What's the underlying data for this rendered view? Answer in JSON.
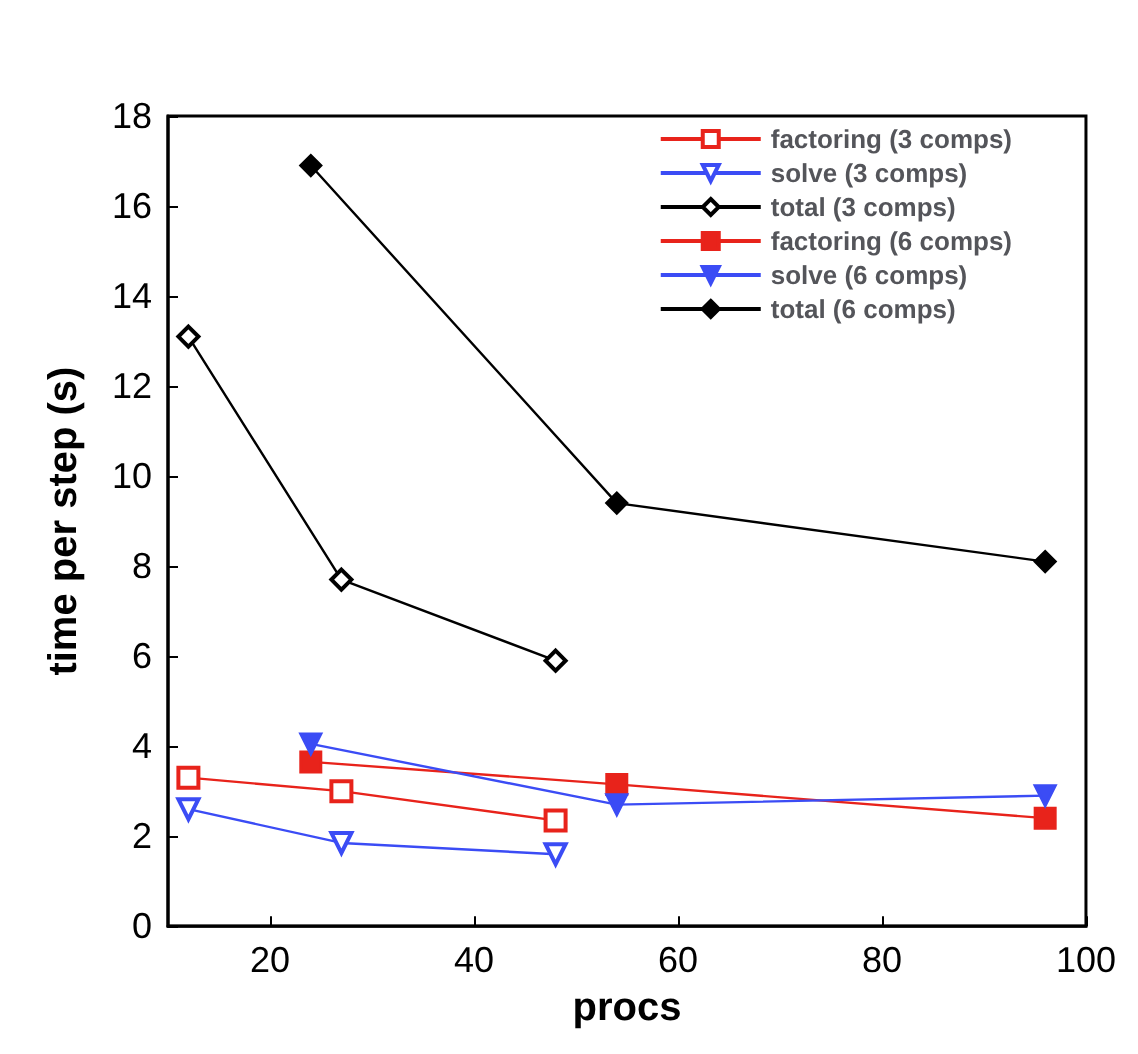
{
  "chart_data": {
    "type": "line",
    "xlabel": "procs",
    "ylabel": "time per step (s)",
    "xlim": [
      10,
      100
    ],
    "xticks": [
      20,
      40,
      60,
      80,
      100
    ],
    "ylim": [
      0,
      18
    ],
    "yticks": [
      0,
      2,
      4,
      6,
      8,
      10,
      12,
      14,
      16,
      18
    ],
    "grid": false,
    "legend": "top right",
    "series": [
      {
        "name": "factoring (3 comps)",
        "color": "#e8231b",
        "marker": "square",
        "x": [
          12,
          27,
          48
        ],
        "values": [
          3.3,
          3.0,
          2.35
        ]
      },
      {
        "name": "solve (3 comps)",
        "color": "#3b4cf5",
        "marker": "triangle",
        "x": [
          12,
          27,
          48
        ],
        "values": [
          2.6,
          1.85,
          1.6
        ]
      },
      {
        "name": "total (3 comps)",
        "color": "#000000",
        "marker": "diamond",
        "x": [
          12,
          27,
          48
        ],
        "values": [
          13.1,
          7.7,
          5.9
        ]
      },
      {
        "name": "factoring (6 comps)",
        "color": "#e8231b",
        "marker": "square",
        "x": [
          24,
          54,
          96
        ],
        "values": [
          3.65,
          3.15,
          2.4
        ]
      },
      {
        "name": "solve (6 comps)",
        "color": "#3b4cf5",
        "marker": "triangle",
        "x": [
          24,
          54,
          96
        ],
        "values": [
          4.05,
          2.7,
          2.9
        ]
      },
      {
        "name": "total (6 comps)",
        "color": "#000000",
        "marker": "diamond",
        "x": [
          24,
          54,
          96
        ],
        "values": [
          16.9,
          9.4,
          8.1
        ]
      }
    ]
  }
}
